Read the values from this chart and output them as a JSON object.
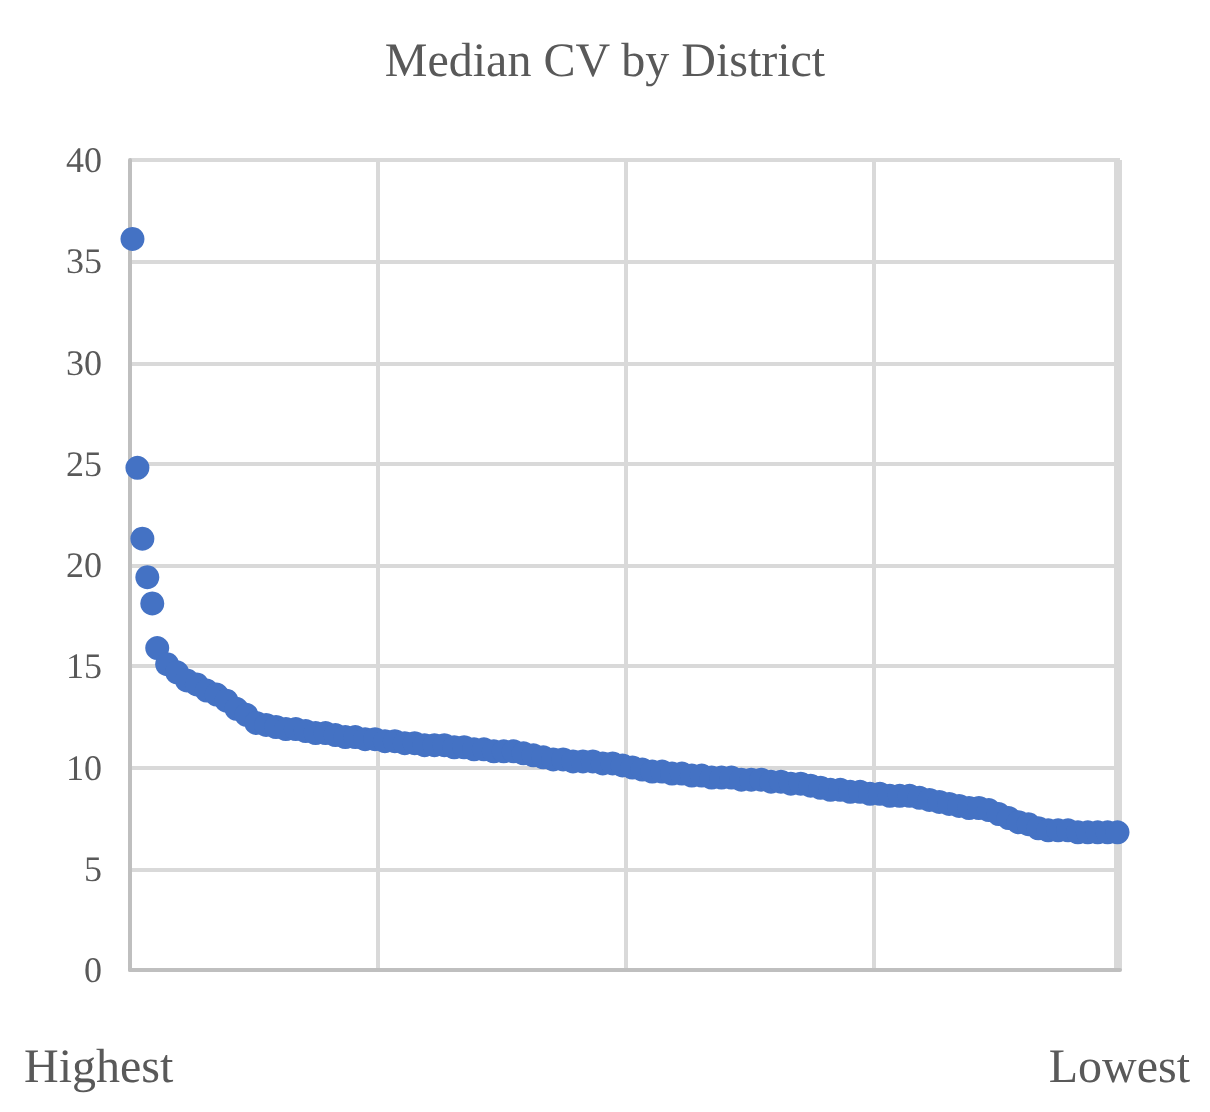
{
  "chart_data": {
    "type": "scatter",
    "title": "Median CV by District",
    "categories": [
      null,
      null,
      null,
      null,
      null,
      null,
      null,
      null,
      null,
      null,
      null,
      null,
      null,
      null,
      null,
      null,
      null,
      null,
      null,
      null,
      null,
      null,
      null,
      null,
      null,
      null,
      null,
      null,
      null,
      null,
      null,
      null,
      null,
      null,
      null,
      null,
      null,
      null,
      null,
      null,
      null,
      null,
      null,
      null,
      null,
      null,
      null,
      null,
      null,
      null,
      null,
      null,
      null,
      null,
      null,
      null,
      null,
      null,
      null,
      null,
      null,
      null,
      null,
      null,
      null,
      null,
      null,
      null,
      null,
      null,
      null,
      null,
      null,
      null,
      null,
      null,
      null,
      null,
      null,
      null,
      null,
      null,
      null,
      null,
      null,
      null,
      null,
      null,
      null,
      null,
      null,
      null,
      null,
      null,
      null,
      null,
      null,
      null,
      null,
      null,
      null,
      null,
      null,
      null,
      null,
      null,
      null,
      null,
      null,
      null,
      null,
      null,
      null,
      null,
      null,
      null,
      null,
      null,
      null,
      null,
      null,
      null,
      null,
      null,
      null,
      null,
      null,
      null,
      null,
      null,
      null,
      null,
      null,
      null,
      null,
      null,
      null,
      null,
      null,
      null,
      null,
      null,
      null,
      null,
      null,
      null,
      null,
      null,
      null,
      null,
      null,
      null,
      null,
      null,
      null,
      null,
      null,
      null,
      null,
      null,
      null,
      null,
      null,
      null,
      null,
      null,
      null,
      null,
      null,
      null,
      null,
      null,
      null,
      null,
      null,
      null,
      null,
      null,
      null,
      null,
      null,
      null,
      null,
      null,
      null,
      null,
      null,
      null,
      null,
      null,
      null,
      null,
      null,
      null,
      null,
      null,
      null,
      null,
      null,
      null
    ],
    "values": [
      36.1,
      24.8,
      21.3,
      19.4,
      18.1,
      15.9,
      null,
      15.1,
      null,
      14.7,
      null,
      14.3,
      null,
      14.1,
      null,
      13.8,
      null,
      13.6,
      null,
      13.3,
      null,
      12.9,
      null,
      12.6,
      null,
      12.2,
      null,
      12.1,
      null,
      12.0,
      null,
      11.9,
      null,
      11.9,
      null,
      11.8,
      null,
      11.7,
      null,
      11.7,
      null,
      11.6,
      null,
      11.5,
      null,
      11.5,
      null,
      11.4,
      null,
      11.4,
      null,
      11.3,
      null,
      11.3,
      null,
      11.2,
      null,
      11.2,
      null,
      11.1,
      null,
      11.1,
      null,
      11.1,
      null,
      11.0,
      null,
      11.0,
      null,
      10.9,
      null,
      10.9,
      null,
      10.8,
      null,
      10.8,
      null,
      10.8,
      null,
      10.7,
      null,
      10.6,
      null,
      10.5,
      null,
      10.4,
      null,
      10.4,
      null,
      10.3,
      null,
      10.3,
      null,
      10.3,
      null,
      10.2,
      null,
      10.2,
      null,
      10.1,
      null,
      10.0,
      null,
      9.9,
      null,
      9.8,
      null,
      9.8,
      null,
      9.7,
      null,
      9.7,
      null,
      9.6,
      null,
      9.6,
      null,
      9.5,
      null,
      9.5,
      null,
      9.5,
      null,
      9.4,
      null,
      9.4,
      null,
      9.4,
      null,
      9.3,
      null,
      9.3,
      null,
      9.2,
      null,
      9.2,
      null,
      9.1,
      null,
      9.0,
      null,
      8.9,
      null,
      8.9,
      null,
      8.8,
      null,
      8.8,
      null,
      8.7,
      null,
      8.7,
      null,
      8.6,
      null,
      8.6,
      null,
      8.6,
      null,
      8.5,
      null,
      8.4,
      null,
      8.3,
      null,
      8.2,
      null,
      8.1,
      null,
      8.0,
      null,
      8.0,
      null,
      7.9,
      null,
      7.7,
      null,
      7.5,
      null,
      7.3,
      null,
      7.2,
      null,
      7.0,
      null,
      6.9,
      null,
      6.9,
      null,
      6.9,
      null,
      6.8,
      null,
      6.8,
      null,
      6.8,
      null,
      6.8,
      null,
      6.8
    ],
    "color": "#4472c4",
    "marker": "circle",
    "ylim": [
      0,
      40
    ],
    "yticks": [
      0,
      5,
      10,
      15,
      20,
      25,
      30,
      35,
      40
    ],
    "grid": true,
    "annotations": [
      "Highest",
      "Lowest"
    ]
  }
}
